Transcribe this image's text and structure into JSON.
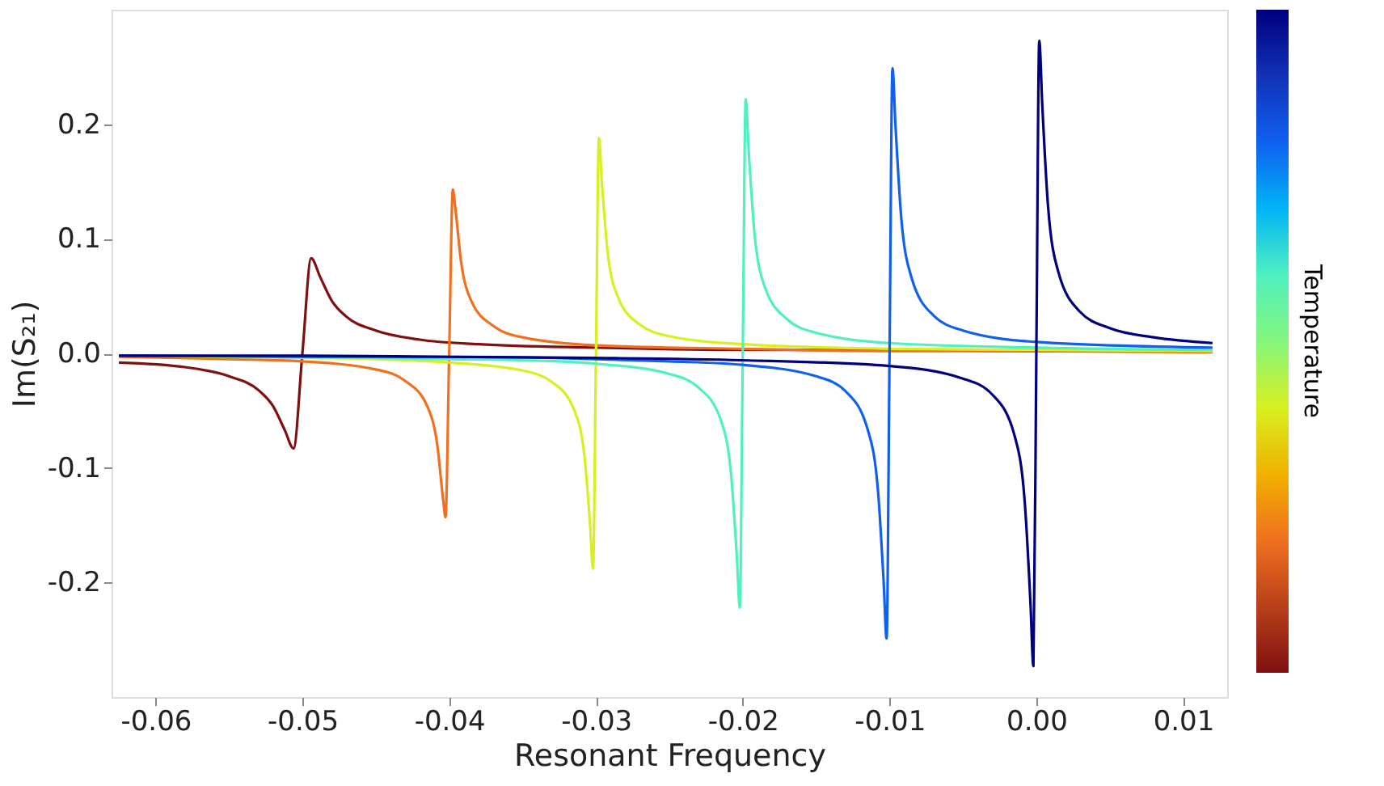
{
  "chart_data": {
    "type": "line",
    "xlabel": "Resonant Frequency",
    "ylabel": "Im(S₂₁)",
    "clabel": "Temperature",
    "xlim": [
      -0.063,
      0.013
    ],
    "ylim": [
      -0.3,
      0.3
    ],
    "xticks": [
      -0.06,
      -0.05,
      -0.04,
      -0.03,
      -0.02,
      -0.01,
      {
        "value": 0,
        "label": "0.00"
      },
      0.01
    ],
    "yticks": [
      -0.2,
      -0.1,
      {
        "value": 0,
        "label": "0.0"
      },
      0.1,
      0.2
    ],
    "grid": false,
    "marker": "none",
    "line_style": "solid",
    "series": [
      {
        "color": "#7f1010",
        "x": [
          -0.0625,
          -0.058,
          -0.055,
          -0.053,
          -0.052,
          -0.0512,
          -0.0506,
          -0.05,
          -0.0494,
          -0.0488,
          -0.048,
          -0.047,
          -0.045,
          -0.042,
          -0.038,
          -0.03,
          -0.02,
          -0.01,
          0,
          0.012
        ],
        "values": [
          -0.008,
          -0.012,
          -0.02,
          -0.032,
          -0.046,
          -0.067,
          -0.083,
          0,
          0.083,
          0.067,
          0.046,
          0.032,
          0.02,
          0.012,
          0.008,
          0.005,
          0.003,
          0.003,
          0.002,
          0.002
        ]
      },
      {
        "color": "#f07020",
        "x": [
          -0.0625,
          -0.055,
          -0.05,
          -0.045,
          -0.043,
          -0.0415,
          -0.0408,
          -0.0404,
          -0.04025,
          -0.04,
          -0.03975,
          -0.0396,
          -0.0392,
          -0.0385,
          -0.037,
          -0.035,
          -0.03,
          -0.02,
          -0.01,
          0,
          0.012
        ],
        "values": [
          -0.003,
          -0.005,
          -0.007,
          -0.014,
          -0.024,
          -0.046,
          -0.081,
          -0.129,
          -0.143,
          0,
          0.143,
          0.129,
          0.081,
          0.046,
          0.024,
          0.014,
          0.007,
          0.004,
          0.002,
          0.002,
          0.001
        ]
      },
      {
        "color": "#d8f020",
        "x": [
          -0.0625,
          -0.05,
          -0.045,
          -0.04,
          -0.035,
          -0.033,
          -0.0315,
          -0.0308,
          -0.0304,
          -0.0302,
          -0.03,
          -0.0298,
          -0.0296,
          -0.0292,
          -0.0285,
          -0.027,
          -0.025,
          -0.02,
          -0.01,
          0,
          0.012
        ],
        "values": [
          -0.002,
          -0.004,
          -0.005,
          -0.008,
          -0.015,
          -0.025,
          -0.049,
          -0.088,
          -0.15,
          -0.188,
          0,
          0.188,
          0.15,
          0.088,
          0.049,
          0.025,
          0.015,
          0.008,
          0.004,
          0.003,
          0.002
        ]
      },
      {
        "color": "#50f0c0",
        "x": [
          -0.0625,
          -0.05,
          -0.04,
          -0.035,
          -0.03,
          -0.025,
          -0.023,
          -0.0215,
          -0.0208,
          -0.0204,
          -0.0202,
          -0.02,
          -0.0198,
          -0.0196,
          -0.0192,
          -0.0185,
          -0.017,
          -0.015,
          -0.01,
          0,
          0.012
        ],
        "values": [
          -0.002,
          -0.003,
          -0.005,
          -0.006,
          -0.009,
          -0.018,
          -0.03,
          -0.058,
          -0.105,
          -0.178,
          -0.222,
          0,
          0.222,
          0.178,
          0.105,
          0.058,
          0.03,
          0.018,
          0.009,
          0.005,
          0.003
        ]
      },
      {
        "color": "#1060f0",
        "x": [
          -0.0625,
          -0.05,
          -0.04,
          -0.03,
          -0.025,
          -0.02,
          -0.015,
          -0.013,
          -0.0115,
          -0.0108,
          -0.0104,
          -0.0102,
          -0.01,
          -0.0098,
          -0.0096,
          -0.0092,
          -0.0085,
          -0.007,
          -0.005,
          0,
          0.012
        ],
        "values": [
          -0.002,
          -0.003,
          -0.003,
          -0.005,
          -0.007,
          -0.01,
          -0.02,
          -0.033,
          -0.066,
          -0.118,
          -0.2,
          -0.249,
          0,
          0.249,
          0.2,
          0.118,
          0.066,
          0.033,
          0.02,
          0.01,
          0.005
        ]
      },
      {
        "color": "#00007f",
        "x": [
          -0.0625,
          -0.05,
          -0.04,
          -0.03,
          -0.02,
          -0.01,
          -0.005,
          -0.003,
          -0.0015,
          -0.0008,
          -0.0004,
          -0.0002,
          0,
          0.0002,
          0.0004,
          0.0008,
          0.0015,
          0.003,
          0.005,
          0.008,
          0.012
        ],
        "values": [
          -0.002,
          -0.002,
          -0.003,
          -0.004,
          -0.006,
          -0.011,
          -0.022,
          -0.036,
          -0.071,
          -0.128,
          -0.218,
          -0.273,
          0,
          0.273,
          0.218,
          0.128,
          0.071,
          0.036,
          0.022,
          0.014,
          0.009
        ]
      }
    ]
  }
}
